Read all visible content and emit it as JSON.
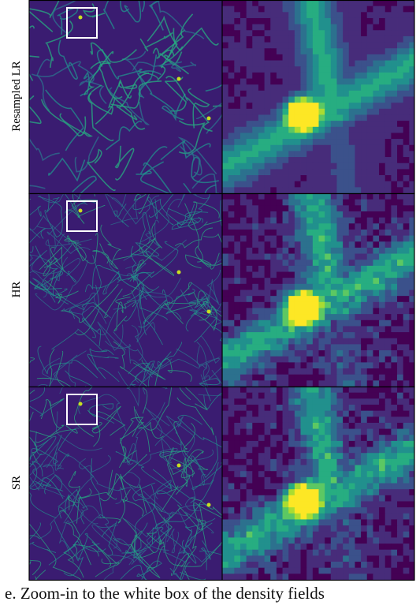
{
  "rows": [
    {
      "label": "Resampled LR"
    },
    {
      "label": "HR"
    },
    {
      "label": "SR"
    }
  ],
  "caption": "e. Zoom-in to the white box of the density fields"
}
